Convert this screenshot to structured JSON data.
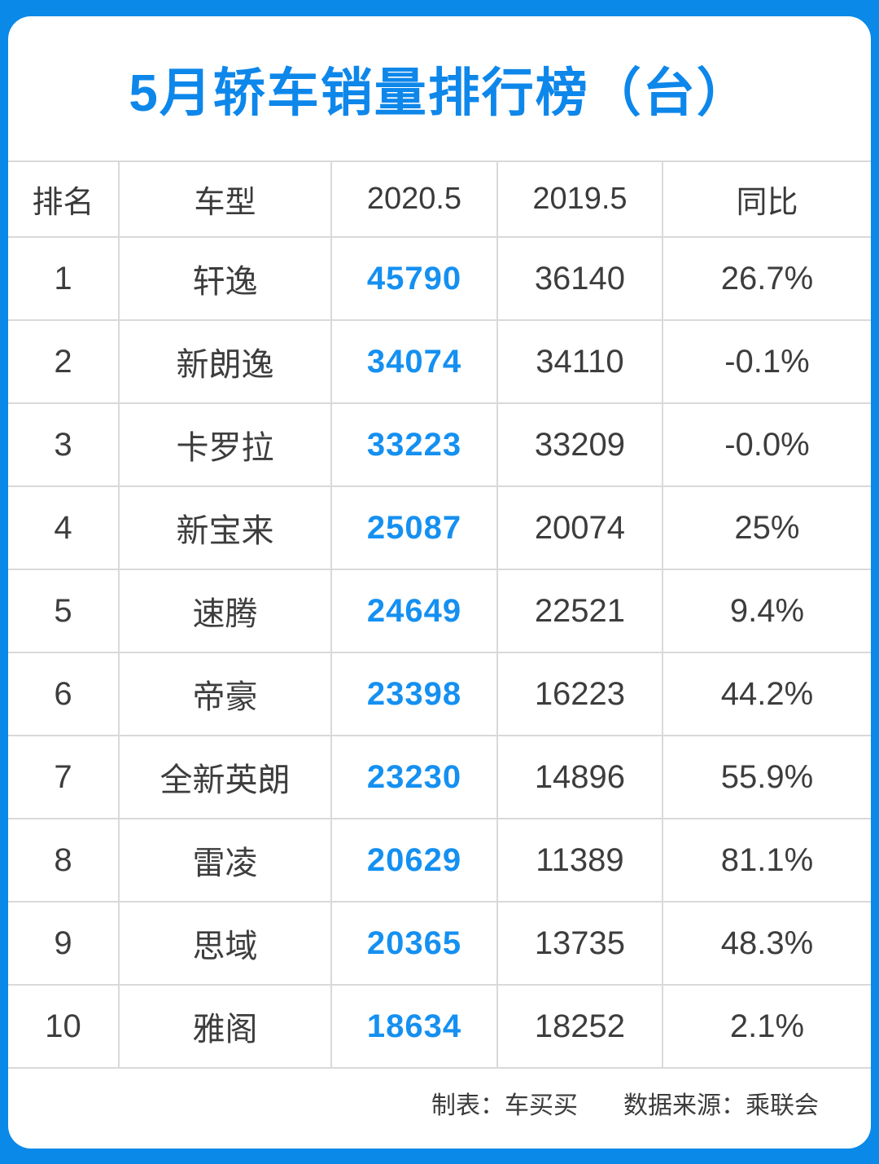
{
  "title": "5月轿车销量排行榜（台）",
  "colors": {
    "background_blue": "#0a89e8",
    "title_blue": "#0e87ea",
    "highlight_blue": "#1590f1",
    "text_dark": "#3d3d3d",
    "gridline_gray": "#d9d9d9"
  },
  "table": {
    "columns": [
      "排名",
      "车型",
      "2020.5",
      "2019.5",
      "同比"
    ],
    "rows": [
      {
        "rank": "1",
        "model": "轩逸",
        "sales_2020_5": "45790",
        "sales_2019_5": "36140",
        "yoy": "26.7%"
      },
      {
        "rank": "2",
        "model": "新朗逸",
        "sales_2020_5": "34074",
        "sales_2019_5": "34110",
        "yoy": "-0.1%"
      },
      {
        "rank": "3",
        "model": "卡罗拉",
        "sales_2020_5": "33223",
        "sales_2019_5": "33209",
        "yoy": "-0.0%"
      },
      {
        "rank": "4",
        "model": "新宝来",
        "sales_2020_5": "25087",
        "sales_2019_5": "20074",
        "yoy": "25%"
      },
      {
        "rank": "5",
        "model": "速腾",
        "sales_2020_5": "24649",
        "sales_2019_5": "22521",
        "yoy": "9.4%"
      },
      {
        "rank": "6",
        "model": "帝豪",
        "sales_2020_5": "23398",
        "sales_2019_5": "16223",
        "yoy": "44.2%"
      },
      {
        "rank": "7",
        "model": "全新英朗",
        "sales_2020_5": "23230",
        "sales_2019_5": "14896",
        "yoy": "55.9%"
      },
      {
        "rank": "8",
        "model": "雷凌",
        "sales_2020_5": "20629",
        "sales_2019_5": "11389",
        "yoy": "81.1%"
      },
      {
        "rank": "9",
        "model": "思域",
        "sales_2020_5": "20365",
        "sales_2019_5": "13735",
        "yoy": "48.3%"
      },
      {
        "rank": "10",
        "model": "雅阁",
        "sales_2020_5": "18634",
        "sales_2019_5": "18252",
        "yoy": "2.1%"
      }
    ]
  },
  "footer": {
    "maker": "制表：车买买",
    "source": "数据来源：乘联会"
  },
  "chart_data": {
    "type": "table",
    "title": "5月轿车销量排行榜（台）",
    "columns": [
      "排名",
      "车型",
      "2020.5",
      "2019.5",
      "同比"
    ],
    "models": [
      "轩逸",
      "新朗逸",
      "卡罗拉",
      "新宝来",
      "速腾",
      "帝豪",
      "全新英朗",
      "雷凌",
      "思域",
      "雅阁"
    ],
    "ranks": [
      1,
      2,
      3,
      4,
      5,
      6,
      7,
      8,
      9,
      10
    ],
    "sales_2020_5": [
      45790,
      34074,
      33223,
      25087,
      24649,
      23398,
      23230,
      20629,
      20365,
      18634
    ],
    "sales_2019_5": [
      36140,
      34110,
      33209,
      20074,
      22521,
      16223,
      14896,
      11389,
      13735,
      18252
    ],
    "yoy_percent_labels": [
      "26.7%",
      "-0.1%",
      "-0.0%",
      "25%",
      "9.4%",
      "44.2%",
      "55.9%",
      "81.1%",
      "48.3%",
      "2.1%"
    ],
    "notes": [
      "制表：车买买",
      "数据来源：乘联会"
    ]
  }
}
